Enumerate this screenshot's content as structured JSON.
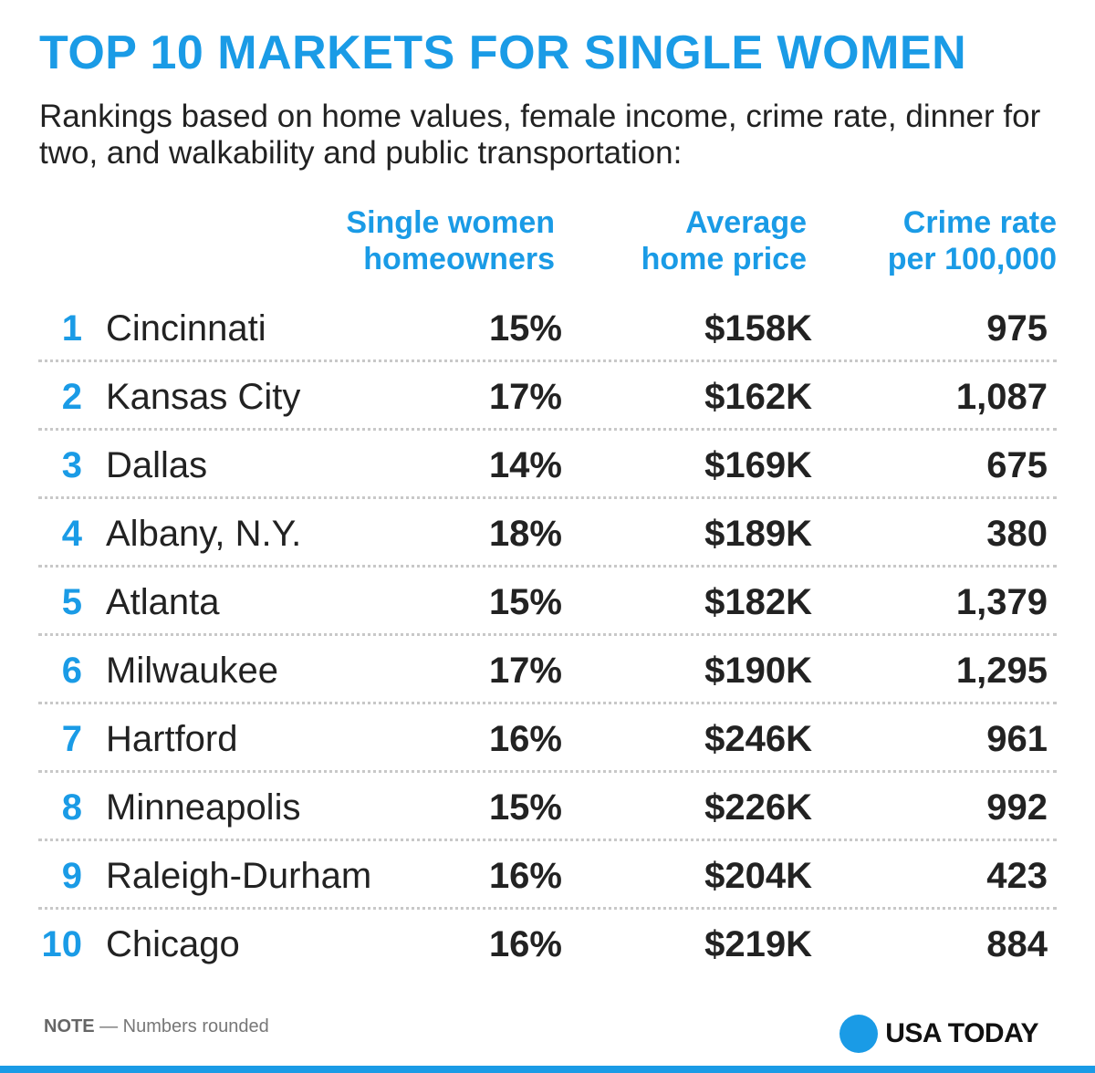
{
  "title": "TOP 10 MARKETS FOR SINGLE WOMEN",
  "subtitle": "Rankings based on home values, female income, crime rate, dinner for two, and walkability and public transportation:",
  "colors": {
    "accent": "#1a9be6",
    "text": "#222222",
    "divider": "#c8c8c8"
  },
  "chart_data": {
    "type": "table",
    "title": "TOP 10 MARKETS FOR SINGLE WOMEN",
    "columns": {
      "homeowners": [
        "Single women",
        "homeowners"
      ],
      "price": [
        "Average",
        "home price"
      ],
      "crime": [
        "Crime rate",
        "per 100,000"
      ]
    },
    "rows": [
      {
        "rank": "1",
        "city": "Cincinnati",
        "homeowners": "15%",
        "price": "$158K",
        "crime": "975"
      },
      {
        "rank": "2",
        "city": "Kansas City",
        "homeowners": "17%",
        "price": "$162K",
        "crime": "1,087"
      },
      {
        "rank": "3",
        "city": "Dallas",
        "homeowners": "14%",
        "price": "$169K",
        "crime": "675"
      },
      {
        "rank": "4",
        "city": "Albany, N.Y.",
        "homeowners": "18%",
        "price": "$189K",
        "crime": "380"
      },
      {
        "rank": "5",
        "city": "Atlanta",
        "homeowners": "15%",
        "price": "$182K",
        "crime": "1,379"
      },
      {
        "rank": "6",
        "city": "Milwaukee",
        "homeowners": "17%",
        "price": "$190K",
        "crime": "1,295"
      },
      {
        "rank": "7",
        "city": "Hartford",
        "homeowners": "16%",
        "price": "$246K",
        "crime": "961"
      },
      {
        "rank": "8",
        "city": "Minneapolis",
        "homeowners": "15%",
        "price": "$226K",
        "crime": "992"
      },
      {
        "rank": "9",
        "city": "Raleigh-Durham",
        "homeowners": "16%",
        "price": "$204K",
        "crime": "423"
      },
      {
        "rank": "10",
        "city": "Chicago",
        "homeowners": "16%",
        "price": "$219K",
        "crime": "884"
      }
    ]
  },
  "note": {
    "label": "NOTE",
    "text": " — Numbers rounded"
  },
  "brand": {
    "name": "USA TODAY",
    "icon": "usa-today-dot-icon"
  }
}
